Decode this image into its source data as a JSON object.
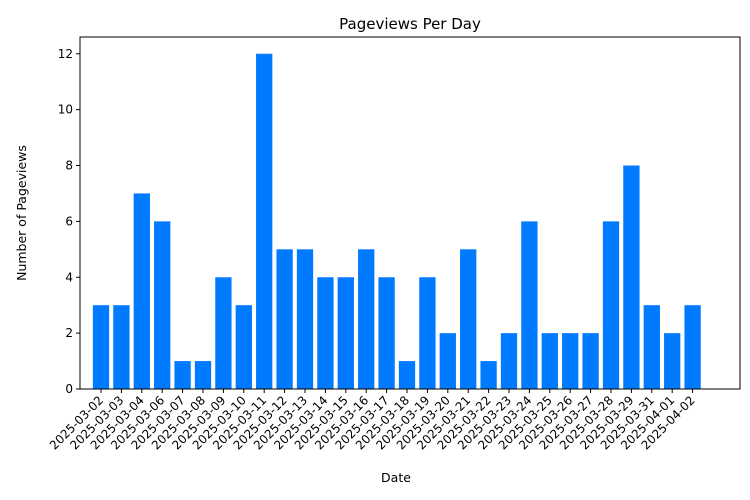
{
  "chart_data": {
    "type": "bar",
    "title": "Pageviews Per Day",
    "xlabel": "Date",
    "ylabel": "Number of Pageviews",
    "categories": [
      "2025-03-02",
      "2025-03-03",
      "2025-03-04",
      "2025-03-06",
      "2025-03-07",
      "2025-03-08",
      "2025-03-09",
      "2025-03-10",
      "2025-03-11",
      "2025-03-12",
      "2025-03-13",
      "2025-03-14",
      "2025-03-15",
      "2025-03-16",
      "2025-03-17",
      "2025-03-18",
      "2025-03-19",
      "2025-03-20",
      "2025-03-21",
      "2025-03-22",
      "2025-03-23",
      "2025-03-24",
      "2025-03-25",
      "2025-03-26",
      "2025-03-27",
      "2025-03-28",
      "2025-03-29",
      "2025-03-31",
      "2025-04-01",
      "2025-04-02"
    ],
    "values": [
      3,
      3,
      7,
      6,
      1,
      1,
      4,
      3,
      12,
      5,
      5,
      4,
      4,
      5,
      4,
      1,
      4,
      2,
      5,
      1,
      2,
      6,
      2,
      2,
      2,
      6,
      8,
      3,
      2,
      3
    ],
    "ylim": [
      0,
      12.6
    ],
    "yticks": [
      0,
      2,
      4,
      6,
      8,
      10,
      12
    ],
    "bar_color": "#007bff",
    "grid": false,
    "legend": "none"
  }
}
